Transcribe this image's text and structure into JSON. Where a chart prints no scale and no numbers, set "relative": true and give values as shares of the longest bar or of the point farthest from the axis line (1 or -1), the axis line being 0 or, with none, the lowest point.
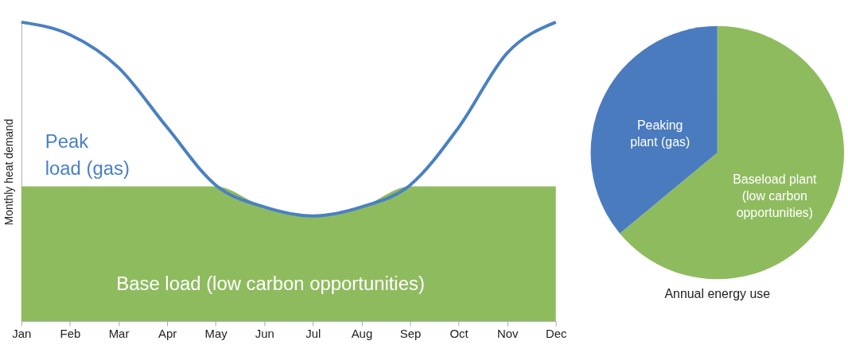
{
  "chart_data": [
    {
      "type": "line",
      "relative": true,
      "ylabel": "Monthly heat demand",
      "categories": [
        "Jan",
        "Feb",
        "Mar",
        "Apr",
        "May",
        "Jun",
        "Jul",
        "Aug",
        "Sep",
        "Oct",
        "Nov",
        "Dec"
      ],
      "series": [
        {
          "name": "Base load (low carbon opportunities)",
          "type": "area",
          "color": "#8fbb5f",
          "values": [
            0.451,
            0.451,
            0.451,
            0.451,
            0.451,
            0.382,
            0.352,
            0.382,
            0.451,
            0.451,
            0.451,
            0.451
          ]
        },
        {
          "name": "Peak load (gas)",
          "type": "line",
          "color": "#4a80c3",
          "values": [
            1.0,
            0.958,
            0.848,
            0.648,
            0.455,
            0.382,
            0.352,
            0.382,
            0.455,
            0.648,
            0.897,
            1.0
          ]
        }
      ]
    },
    {
      "type": "pie",
      "title": "Annual energy use",
      "categories": [
        "Baseload plant (low carbon opportunities)",
        "Peaking plant (gas)"
      ],
      "values": [
        64,
        36
      ],
      "colors": [
        "#8fbb5f",
        "#4a7bbf"
      ]
    }
  ]
}
